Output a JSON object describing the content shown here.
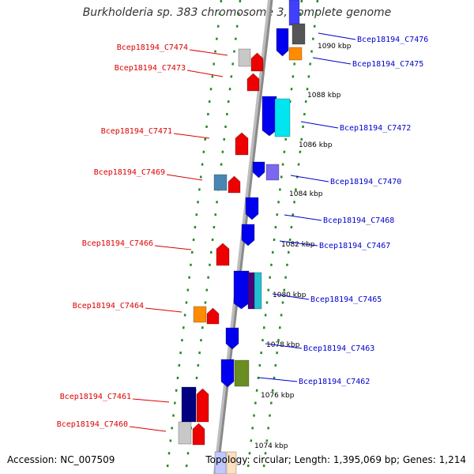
{
  "title": "Burkholderia sp. 383 chromosome 3, complete genome",
  "accession_text": "Accession: NC_007509",
  "topology_text": "Topology: circular; Length: 1,395,069 bp; Genes: 1,214",
  "colors": {
    "backbone": "#8a8a8a",
    "tick": "#228b22",
    "label_forward": "#dd0000",
    "label_reverse": "#0000cc",
    "ruler_text": "#000000"
  },
  "ruler_labels": [
    "1090 kbp",
    "1088 kbp",
    "1086 kbp",
    "1084 kbp",
    "1082 kbp",
    "1080 kbp",
    "1078 kbp",
    "1076 kbp",
    "1074 kbp"
  ],
  "forward_labels": [
    "Bcep18194_C7474",
    "Bcep18194_C7473",
    "Bcep18194_C7471",
    "Bcep18194_C7469",
    "Bcep18194_C7466",
    "Bcep18194_C7464",
    "Bcep18194_C7461",
    "Bcep18194_C7460"
  ],
  "reverse_labels": [
    "Bcep18194_C7476",
    "Bcep18194_C7475",
    "Bcep18194_C7472",
    "Bcep18194_C7470",
    "Bcep18194_C7468",
    "Bcep18194_C7467",
    "Bcep18194_C7465",
    "Bcep18194_C7463",
    "Bcep18194_C7462"
  ]
}
